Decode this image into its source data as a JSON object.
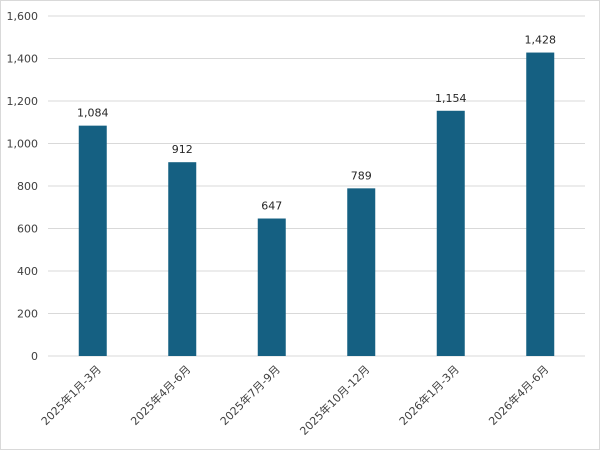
{
  "chart_data": {
    "type": "bar",
    "categories": [
      "2025年1月-3月",
      "2025年4月-6月",
      "2025年7月-9月",
      "2025年10月-12月",
      "2026年1月-3月",
      "2026年4月-6月"
    ],
    "values": [
      1084,
      912,
      647,
      789,
      1154,
      1428
    ],
    "data_labels": [
      "1,084",
      "912",
      "647",
      "789",
      "1,154",
      "1,428"
    ],
    "ylim": [
      0,
      1600
    ],
    "yticks": [
      0,
      200,
      400,
      600,
      800,
      1000,
      1200,
      1400,
      1600
    ],
    "ytick_labels": [
      "0",
      "200",
      "400",
      "600",
      "800",
      "1,000",
      "1,200",
      "1,400",
      "1,600"
    ],
    "grid": true,
    "legend": "none",
    "bar_color": "#156082",
    "grid_color": "#d9d9d9"
  }
}
